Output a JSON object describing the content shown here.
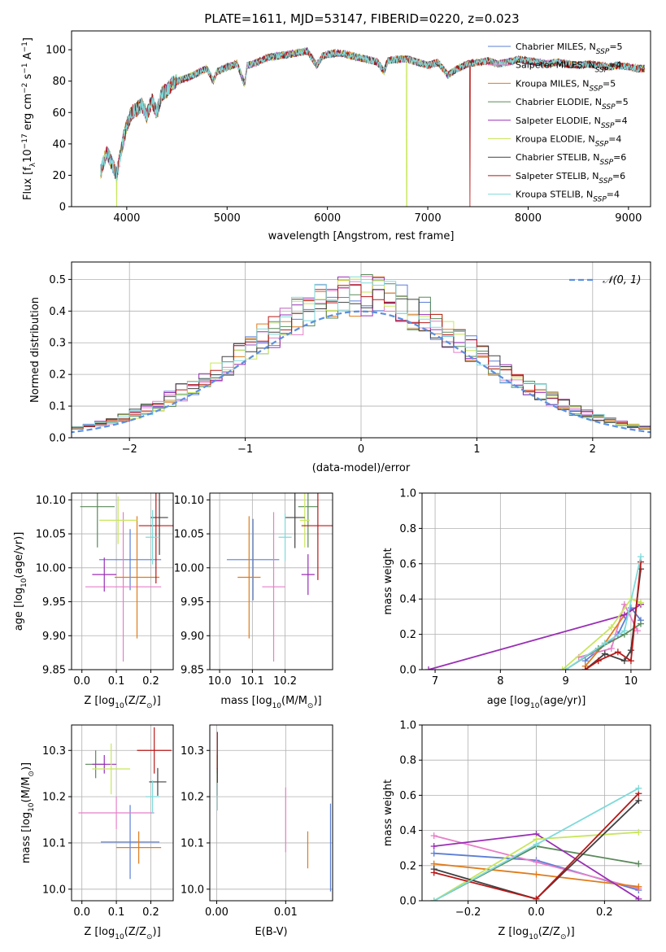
{
  "figure": {
    "title": "PLATE=1611, MJD=53147, FIBERID=0220, z=0.023"
  },
  "series": [
    {
      "name": "Chabrier MILES, N$_{SSP}$=5",
      "color": "#5b7fd6",
      "label_main": "Chabrier MILES, N",
      "label_sub": "SSP",
      "label_tail": "=5"
    },
    {
      "name": "Salpeter MILES, N$_{SSP}$=4",
      "color": "#e67fc8",
      "label_main": "Salpeter MILES, N",
      "label_sub": "SSP",
      "label_tail": "=4"
    },
    {
      "name": "Kroupa MILES, N$_{SSP}$=5",
      "color": "#e07b1a",
      "label_main": "Kroupa MILES, N",
      "label_sub": "SSP",
      "label_tail": "=5"
    },
    {
      "name": "Chabrier ELODIE, N$_{SSP}$=5",
      "color": "#5a8a5a",
      "label_main": "Chabrier ELODIE, N",
      "label_sub": "SSP",
      "label_tail": "=5"
    },
    {
      "name": "Salpeter ELODIE, N$_{SSP}$=4",
      "color": "#9a2fb5",
      "label_main": "Salpeter ELODIE, N",
      "label_sub": "SSP",
      "label_tail": "=4"
    },
    {
      "name": "Kroupa ELODIE, N$_{SSP}$=4",
      "color": "#c8e65a",
      "label_main": "Kroupa ELODIE, N",
      "label_sub": "SSP",
      "label_tail": "=4"
    },
    {
      "name": "Chabrier STELIB, N$_{SSP}$=6",
      "color": "#404040",
      "label_main": "Chabrier STELIB, N",
      "label_sub": "SSP",
      "label_tail": "=6"
    },
    {
      "name": "Salpeter STELIB, N$_{SSP}$=6",
      "color": "#b81818",
      "label_main": "Salpeter STELIB, N",
      "label_sub": "SSP",
      "label_tail": "=6"
    },
    {
      "name": "Kroupa STELIB, N$_{SSP}$=4",
      "color": "#7fdada",
      "label_main": "Kroupa STELIB, N",
      "label_sub": "SSP",
      "label_tail": "=4"
    }
  ],
  "chart_data": [
    {
      "id": "spectrum",
      "type": "line",
      "title": "PLATE=1611, MJD=53147, FIBERID=0220, z=0.023",
      "xlabel": "wavelength [Angstrom, rest frame]",
      "ylabel": "Flux [f$_\\lambda$10$^{-17}$ erg cm$^{-2}$ s$^{-1}$ A$^{-1}$]",
      "xlim": [
        3450,
        9220
      ],
      "ylim": [
        0,
        112
      ],
      "xticks": [
        4000,
        5000,
        6000,
        7000,
        8000,
        9000
      ],
      "yticks": [
        0,
        20,
        40,
        60,
        80,
        100
      ],
      "grid": false,
      "legend": "top-right",
      "x": [
        3740,
        3800,
        3850,
        3900,
        3950,
        4000,
        4050,
        4100,
        4150,
        4200,
        4250,
        4300,
        4350,
        4400,
        4450,
        4500,
        4600,
        4700,
        4800,
        4862,
        4900,
        5000,
        5100,
        5175,
        5200,
        5300,
        5400,
        5500,
        5600,
        5700,
        5800,
        5893,
        5950,
        6000,
        6100,
        6200,
        6300,
        6400,
        6500,
        6563,
        6600,
        6700,
        6800,
        6900,
        7000,
        7100,
        7200,
        7300,
        7400,
        7500,
        7600,
        7700,
        7800,
        7900,
        8000,
        8100,
        8200,
        8300,
        8400,
        8500,
        8600,
        8700,
        8800,
        8900,
        9000,
        9100,
        9160
      ],
      "y": [
        22,
        35,
        28,
        20,
        38,
        52,
        60,
        62,
        65,
        58,
        68,
        60,
        72,
        74,
        78,
        80,
        82,
        85,
        88,
        80,
        86,
        89,
        91,
        78,
        90,
        92,
        95,
        96,
        97,
        98,
        99,
        90,
        96,
        97,
        98,
        97,
        95,
        94,
        92,
        86,
        93,
        94,
        94,
        92,
        90,
        92,
        84,
        88,
        91,
        92,
        93,
        91,
        92,
        94,
        93,
        92,
        91,
        92,
        91,
        90,
        91,
        90,
        89,
        90,
        89,
        88,
        88
      ],
      "drops": [
        {
          "series": 5,
          "x": 3900
        },
        {
          "series": 5,
          "x": 6790
        },
        {
          "series": 7,
          "x": 7420
        }
      ]
    },
    {
      "id": "residuals",
      "type": "area",
      "xlabel": "(data-model)/error",
      "ylabel": "Normed distribution",
      "xlim": [
        -2.5,
        2.5
      ],
      "ylim": [
        0,
        0.555
      ],
      "xticks": [
        -2,
        -1,
        0,
        1,
        2
      ],
      "yticks": [
        0.0,
        0.1,
        0.2,
        0.3,
        0.4,
        0.5
      ],
      "grid": true,
      "legend": "top-right",
      "reference_curve": {
        "name": "$\\mathcal{N}(0,1)$",
        "label": "𝒩(0, 1)",
        "color": "#5b8fe0"
      },
      "bin_width": 0.1
    },
    {
      "id": "age_vs_Z",
      "type": "scatter",
      "xlabel": "Z [log$_{10}$($Z/Z_\\odot$)]",
      "ylabel": "age  [log$_{10}$($age/yr$)]",
      "xlim": [
        -0.03,
        0.265
      ],
      "ylim": [
        9.85,
        10.11
      ],
      "xticks": [
        0.0,
        0.1,
        0.2
      ],
      "yticks": [
        9.85,
        9.9,
        9.95,
        10.0,
        10.05,
        10.1
      ],
      "grid": true,
      "points": [
        {
          "series": 0,
          "x": 0.14,
          "y": 10.012,
          "xerr": 0.09,
          "yerr": 0.045
        },
        {
          "series": 1,
          "x": 0.12,
          "y": 9.972,
          "xerr": 0.11,
          "yerr": 0.11
        },
        {
          "series": 2,
          "x": 0.16,
          "y": 9.986,
          "xerr": 0.065,
          "yerr": 0.09
        },
        {
          "series": 3,
          "x": 0.045,
          "y": 10.09,
          "xerr": 0.05,
          "yerr": 0.06
        },
        {
          "series": 4,
          "x": 0.065,
          "y": 9.99,
          "xerr": 0.035,
          "yerr": 0.025
        },
        {
          "series": 5,
          "x": 0.105,
          "y": 10.07,
          "xerr": 0.055,
          "yerr": 0.035
        },
        {
          "series": 6,
          "x": 0.225,
          "y": 10.074,
          "xerr": 0.025,
          "yerr": 0.055
        },
        {
          "series": 7,
          "x": 0.215,
          "y": 10.062,
          "xerr": 0.05,
          "yerr": 0.085
        },
        {
          "series": 8,
          "x": 0.205,
          "y": 10.045,
          "xerr": 0.02,
          "yerr": 0.04
        }
      ]
    },
    {
      "id": "age_vs_mass",
      "type": "scatter",
      "xlabel": "mass [log$_{10}$($M/M_\\odot$)]",
      "ylabel": "",
      "xlim": [
        9.97,
        10.345
      ],
      "ylim": [
        9.85,
        10.11
      ],
      "xticks": [
        10.0,
        10.1,
        10.2
      ],
      "yticks": [
        9.85,
        9.9,
        9.95,
        10.0,
        10.05,
        10.1
      ],
      "grid": true,
      "points": [
        {
          "series": 0,
          "x": 10.102,
          "y": 10.012,
          "xerr": 0.08,
          "yerr": 0.06
        },
        {
          "series": 1,
          "x": 10.165,
          "y": 9.972,
          "xerr": 0.035,
          "yerr": 0.11
        },
        {
          "series": 2,
          "x": 10.09,
          "y": 9.986,
          "xerr": 0.035,
          "yerr": 0.09
        },
        {
          "series": 3,
          "x": 10.27,
          "y": 10.09,
          "xerr": 0.03,
          "yerr": 0.06
        },
        {
          "series": 4,
          "x": 10.27,
          "y": 9.99,
          "xerr": 0.02,
          "yerr": 0.03
        },
        {
          "series": 5,
          "x": 10.26,
          "y": 10.07,
          "xerr": 0.015,
          "yerr": 0.04
        },
        {
          "series": 6,
          "x": 10.23,
          "y": 10.074,
          "xerr": 0.03,
          "yerr": 0.045
        },
        {
          "series": 7,
          "x": 10.3,
          "y": 10.062,
          "xerr": 0.05,
          "yerr": 0.08
        },
        {
          "series": 8,
          "x": 10.2,
          "y": 10.045,
          "xerr": 0.02,
          "yerr": 0.035
        }
      ]
    },
    {
      "id": "mass_vs_Z",
      "type": "scatter",
      "xlabel": "Z [log$_{10}$($Z/Z_\\odot$)]",
      "ylabel": "mass [log$_{10}$($M/M_\\odot$)]",
      "xlim": [
        -0.03,
        0.265
      ],
      "ylim": [
        9.975,
        10.355
      ],
      "xticks": [
        0.0,
        0.1,
        0.2
      ],
      "yticks": [
        10.0,
        10.1,
        10.2,
        10.3
      ],
      "grid": true,
      "points": [
        {
          "series": 0,
          "x": 0.14,
          "y": 10.102,
          "xerr": 0.085,
          "yerr": 0.08
        },
        {
          "series": 1,
          "x": 0.1,
          "y": 10.165,
          "xerr": 0.11,
          "yerr": 0.035
        },
        {
          "series": 2,
          "x": 0.165,
          "y": 10.09,
          "xerr": 0.065,
          "yerr": 0.035
        },
        {
          "series": 3,
          "x": 0.04,
          "y": 10.27,
          "xerr": 0.03,
          "yerr": 0.03
        },
        {
          "series": 4,
          "x": 0.065,
          "y": 10.27,
          "xerr": 0.035,
          "yerr": 0.02
        },
        {
          "series": 5,
          "x": 0.085,
          "y": 10.26,
          "xerr": 0.055,
          "yerr": 0.055
        },
        {
          "series": 6,
          "x": 0.22,
          "y": 10.232,
          "xerr": 0.025,
          "yerr": 0.03
        },
        {
          "series": 7,
          "x": 0.21,
          "y": 10.3,
          "xerr": 0.05,
          "yerr": 0.05
        },
        {
          "series": 8,
          "x": 0.205,
          "y": 10.2,
          "xerr": 0.02,
          "yerr": 0.035
        }
      ]
    },
    {
      "id": "mass_vs_EBV",
      "type": "scatter",
      "xlabel": "E(B-V)",
      "ylabel": "",
      "xlim": [
        -0.001,
        0.0168
      ],
      "ylim": [
        9.975,
        10.355
      ],
      "xticks": [
        0.0,
        0.01
      ],
      "yticks": [
        10.0,
        10.1,
        10.2,
        10.3
      ],
      "grid": true,
      "points": [
        {
          "series": 0,
          "x": 0.0165,
          "y": 10.09,
          "xerr": 0,
          "yerr": 0.095
        },
        {
          "series": 1,
          "x": 0.01,
          "y": 10.15,
          "xerr": 0,
          "yerr": 0.07
        },
        {
          "series": 2,
          "x": 0.0132,
          "y": 10.085,
          "xerr": 0,
          "yerr": 0.04
        },
        {
          "series": 3,
          "x": 0.0001,
          "y": 10.27,
          "xerr": 0,
          "yerr": 0.02
        },
        {
          "series": 4,
          "x": 0.0001,
          "y": 10.27,
          "xerr": 0,
          "yerr": 0.02
        },
        {
          "series": 5,
          "x": 0.0001,
          "y": 10.26,
          "xerr": 0,
          "yerr": 0.03
        },
        {
          "series": 6,
          "x": 0.0001,
          "y": 10.232,
          "xerr": 0,
          "yerr": 0.03
        },
        {
          "series": 7,
          "x": 0.0001,
          "y": 10.3,
          "xerr": 0,
          "yerr": 0.04
        },
        {
          "series": 8,
          "x": 0.0001,
          "y": 10.2,
          "xerr": 0,
          "yerr": 0.03
        }
      ]
    },
    {
      "id": "mass_weight_vs_age",
      "type": "line",
      "xlabel": "age  [log$_{10}$($age/yr$)]",
      "ylabel": "mass weight",
      "xlim": [
        6.8,
        10.3
      ],
      "ylim": [
        0,
        1.0
      ],
      "xticks": [
        7,
        8,
        9,
        10
      ],
      "yticks": [
        0.0,
        0.2,
        0.4,
        0.6,
        0.8,
        1.0
      ],
      "grid": true,
      "lines": [
        {
          "series": 0,
          "x": [
            9.3,
            9.8,
            10.0,
            10.15
          ],
          "y": [
            0.05,
            0.2,
            0.35,
            0.28
          ]
        },
        {
          "series": 1,
          "x": [
            9.2,
            9.7,
            9.9,
            10.1
          ],
          "y": [
            0.07,
            0.12,
            0.37,
            0.22
          ]
        },
        {
          "series": 2,
          "x": [
            9.3,
            9.6,
            9.9,
            10.15
          ],
          "y": [
            0.02,
            0.15,
            0.31,
            0.37
          ]
        },
        {
          "series": 3,
          "x": [
            9.0,
            9.5,
            9.9,
            10.15
          ],
          "y": [
            0.0,
            0.12,
            0.2,
            0.26
          ]
        },
        {
          "series": 4,
          "x": [
            6.9,
            9.9,
            10.15
          ],
          "y": [
            0.0,
            0.31,
            0.37
          ]
        },
        {
          "series": 5,
          "x": [
            8.95,
            9.7,
            10.0,
            10.15
          ],
          "y": [
            0.0,
            0.24,
            0.4,
            0.38
          ]
        },
        {
          "series": 6,
          "x": [
            9.3,
            9.6,
            9.9,
            10.0,
            10.15
          ],
          "y": [
            0.0,
            0.09,
            0.05,
            0.11,
            0.57
          ]
        },
        {
          "series": 7,
          "x": [
            9.3,
            9.5,
            9.8,
            10.0,
            10.15
          ],
          "y": [
            0.0,
            0.05,
            0.1,
            0.05,
            0.61
          ]
        },
        {
          "series": 8,
          "x": [
            9.0,
            9.6,
            9.9,
            10.15
          ],
          "y": [
            0.0,
            0.15,
            0.22,
            0.64
          ]
        }
      ]
    },
    {
      "id": "mass_weight_vs_Z",
      "type": "line",
      "xlabel": "Z [log$_{10}$($Z/Z_\\odot$)]",
      "ylabel": "mass weight",
      "xlim": [
        -0.335,
        0.335
      ],
      "ylim": [
        0,
        1.0
      ],
      "xticks": [
        -0.2,
        0.0,
        0.2
      ],
      "yticks": [
        0.0,
        0.2,
        0.4,
        0.6,
        0.8,
        1.0
      ],
      "grid": true,
      "lines": [
        {
          "series": 0,
          "x": [
            -0.3,
            0.0,
            0.3
          ],
          "y": [
            0.27,
            0.23,
            0.06
          ]
        },
        {
          "series": 1,
          "x": [
            -0.3,
            0.0,
            0.3
          ],
          "y": [
            0.37,
            0.22,
            0.07
          ]
        },
        {
          "series": 2,
          "x": [
            -0.3,
            0.0,
            0.3
          ],
          "y": [
            0.21,
            0.15,
            0.08
          ]
        },
        {
          "series": 3,
          "x": [
            -0.3,
            0.0,
            0.3
          ],
          "y": [
            0.0,
            0.31,
            0.21
          ]
        },
        {
          "series": 4,
          "x": [
            -0.3,
            0.0,
            0.3
          ],
          "y": [
            0.31,
            0.38,
            0.01
          ]
        },
        {
          "series": 5,
          "x": [
            -0.3,
            0.0,
            0.3
          ],
          "y": [
            0.0,
            0.35,
            0.39
          ]
        },
        {
          "series": 6,
          "x": [
            -0.3,
            0.0,
            0.3
          ],
          "y": [
            0.18,
            0.01,
            0.57
          ]
        },
        {
          "series": 7,
          "x": [
            -0.3,
            0.0,
            0.3
          ],
          "y": [
            0.16,
            0.01,
            0.61
          ]
        },
        {
          "series": 8,
          "x": [
            -0.3,
            0.0,
            0.3
          ],
          "y": [
            0.0,
            0.32,
            0.64
          ]
        }
      ]
    }
  ]
}
